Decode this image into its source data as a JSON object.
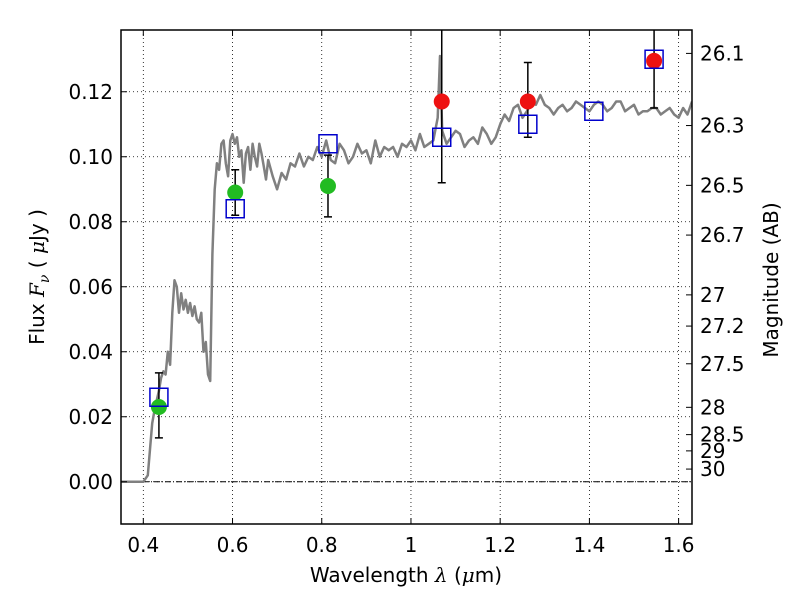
{
  "chart_data": {
    "type": "scatter",
    "xlabel_text": "Wavelength",
    "xlabel_symbol": "λ",
    "xlabel_unit_open": " (",
    "xlabel_unit_mu": "μ",
    "xlabel_unit_close": "m)",
    "ylabel_text": "Flux",
    "ylabel_symbol": "F",
    "ylabel_subscript": "ν",
    "ylabel_unit_open": "(",
    "ylabel_unit_mu": "μ",
    "ylabel_unit_close": "Jy )",
    "y2label": "Magnitude (AB)",
    "xlim": [
      0.35,
      1.63
    ],
    "ylim": [
      -0.013,
      0.139
    ],
    "x_ticks": [
      0.4,
      0.6,
      0.8,
      1.0,
      1.2,
      1.4,
      1.6
    ],
    "x_tick_labels": [
      "0.4",
      "0.6",
      "0.8",
      "1",
      "1.2",
      "1.4",
      "1.6"
    ],
    "y_ticks": [
      0.0,
      0.02,
      0.04,
      0.06,
      0.08,
      0.1,
      0.12
    ],
    "y_tick_labels": [
      "0.00",
      "0.02",
      "0.04",
      "0.06",
      "0.08",
      "0.10",
      "0.12"
    ],
    "mag_ticks": [
      {
        "label": "26.1",
        "flux": 0.1318
      },
      {
        "label": "26.3",
        "flux": 0.1096
      },
      {
        "label": "26.5",
        "flux": 0.0912
      },
      {
        "label": "26.7",
        "flux": 0.0759
      },
      {
        "label": "27",
        "flux": 0.0575
      },
      {
        "label": "27.2",
        "flux": 0.0479
      },
      {
        "label": "27.5",
        "flux": 0.0363
      },
      {
        "label": "28",
        "flux": 0.0229
      },
      {
        "label": "28.5",
        "flux": 0.0145
      },
      {
        "label": "29",
        "flux": 0.0095
      },
      {
        "label": "30",
        "flux": 0.0039
      }
    ],
    "grid": true,
    "zero_line": true,
    "colors": {
      "model": "#808080",
      "detected": "#22bb22",
      "upper": "#ee1111",
      "model_band": "#0000cc",
      "errorbar": "#000000"
    },
    "model_sed": {
      "x": [
        0.35,
        0.4,
        0.41,
        0.415,
        0.42,
        0.425,
        0.43,
        0.435,
        0.44,
        0.445,
        0.45,
        0.455,
        0.46,
        0.465,
        0.47,
        0.475,
        0.48,
        0.485,
        0.49,
        0.495,
        0.5,
        0.505,
        0.51,
        0.515,
        0.52,
        0.525,
        0.53,
        0.535,
        0.54,
        0.545,
        0.55,
        0.555,
        0.56,
        0.565,
        0.57,
        0.575,
        0.58,
        0.585,
        0.59,
        0.595,
        0.6,
        0.605,
        0.61,
        0.615,
        0.62,
        0.625,
        0.63,
        0.635,
        0.64,
        0.645,
        0.65,
        0.655,
        0.66,
        0.665,
        0.67,
        0.675,
        0.68,
        0.69,
        0.7,
        0.71,
        0.72,
        0.73,
        0.74,
        0.75,
        0.76,
        0.77,
        0.78,
        0.79,
        0.8,
        0.81,
        0.82,
        0.83,
        0.84,
        0.85,
        0.86,
        0.87,
        0.88,
        0.89,
        0.9,
        0.91,
        0.92,
        0.93,
        0.94,
        0.95,
        0.96,
        0.97,
        0.98,
        0.99,
        1.0,
        1.01,
        1.02,
        1.03,
        1.04,
        1.05,
        1.06,
        1.065,
        1.07,
        1.08,
        1.09,
        1.1,
        1.11,
        1.12,
        1.13,
        1.14,
        1.15,
        1.16,
        1.17,
        1.18,
        1.19,
        1.2,
        1.21,
        1.22,
        1.23,
        1.24,
        1.25,
        1.26,
        1.27,
        1.28,
        1.29,
        1.3,
        1.31,
        1.32,
        1.33,
        1.34,
        1.35,
        1.36,
        1.37,
        1.38,
        1.39,
        1.4,
        1.41,
        1.42,
        1.43,
        1.44,
        1.45,
        1.46,
        1.47,
        1.48,
        1.49,
        1.5,
        1.51,
        1.52,
        1.53,
        1.54,
        1.55,
        1.56,
        1.57,
        1.58,
        1.59,
        1.6,
        1.61,
        1.62,
        1.63
      ],
      "y": [
        0.0,
        0.0,
        0.002,
        0.01,
        0.018,
        0.022,
        0.025,
        0.028,
        0.032,
        0.034,
        0.033,
        0.04,
        0.036,
        0.052,
        0.062,
        0.06,
        0.052,
        0.058,
        0.053,
        0.056,
        0.052,
        0.055,
        0.051,
        0.054,
        0.05,
        0.049,
        0.052,
        0.04,
        0.043,
        0.033,
        0.031,
        0.07,
        0.09,
        0.098,
        0.096,
        0.104,
        0.105,
        0.098,
        0.094,
        0.105,
        0.107,
        0.104,
        0.106,
        0.1,
        0.102,
        0.092,
        0.101,
        0.103,
        0.096,
        0.104,
        0.1,
        0.097,
        0.104,
        0.101,
        0.097,
        0.093,
        0.099,
        0.094,
        0.09,
        0.095,
        0.093,
        0.098,
        0.097,
        0.101,
        0.097,
        0.1,
        0.099,
        0.103,
        0.1,
        0.105,
        0.099,
        0.098,
        0.104,
        0.102,
        0.098,
        0.1,
        0.104,
        0.101,
        0.102,
        0.098,
        0.105,
        0.1,
        0.103,
        0.102,
        0.103,
        0.1,
        0.104,
        0.103,
        0.105,
        0.102,
        0.107,
        0.103,
        0.104,
        0.105,
        0.112,
        0.131,
        0.108,
        0.104,
        0.106,
        0.108,
        0.107,
        0.103,
        0.105,
        0.106,
        0.104,
        0.109,
        0.107,
        0.104,
        0.106,
        0.11,
        0.113,
        0.111,
        0.115,
        0.116,
        0.112,
        0.114,
        0.117,
        0.116,
        0.119,
        0.116,
        0.115,
        0.113,
        0.115,
        0.116,
        0.114,
        0.115,
        0.117,
        0.116,
        0.115,
        0.114,
        0.116,
        0.117,
        0.116,
        0.114,
        0.115,
        0.117,
        0.117,
        0.114,
        0.115,
        0.116,
        0.113,
        0.114,
        0.114,
        0.115,
        0.115,
        0.113,
        0.114,
        0.115,
        0.113,
        0.112,
        0.115,
        0.113,
        0.117
      ]
    },
    "model_bands": [
      {
        "x": 0.435,
        "y": 0.026
      },
      {
        "x": 0.606,
        "y": 0.084
      },
      {
        "x": 0.814,
        "y": 0.104
      },
      {
        "x": 1.069,
        "y": 0.106
      },
      {
        "x": 1.262,
        "y": 0.11
      },
      {
        "x": 1.41,
        "y": 0.114
      },
      {
        "x": 1.545,
        "y": 0.13
      }
    ],
    "observations": [
      {
        "x": 0.435,
        "y": 0.023,
        "yerr_low": 0.0135,
        "yerr_high": 0.0335,
        "type": "detected"
      },
      {
        "x": 0.606,
        "y": 0.089,
        "yerr_low": 0.082,
        "yerr_high": 0.096,
        "type": "detected"
      },
      {
        "x": 0.814,
        "y": 0.091,
        "yerr_low": 0.0815,
        "yerr_high": 0.1005,
        "type": "detected"
      },
      {
        "x": 1.069,
        "y": 0.117,
        "yerr_low": 0.092,
        "yerr_high": 0.142,
        "type": "upper"
      },
      {
        "x": 1.262,
        "y": 0.117,
        "yerr_low": 0.106,
        "yerr_high": 0.129,
        "type": "upper"
      },
      {
        "x": 1.545,
        "y": 0.1295,
        "yerr_low": 0.115,
        "yerr_high": 0.142,
        "type": "upper"
      }
    ]
  }
}
